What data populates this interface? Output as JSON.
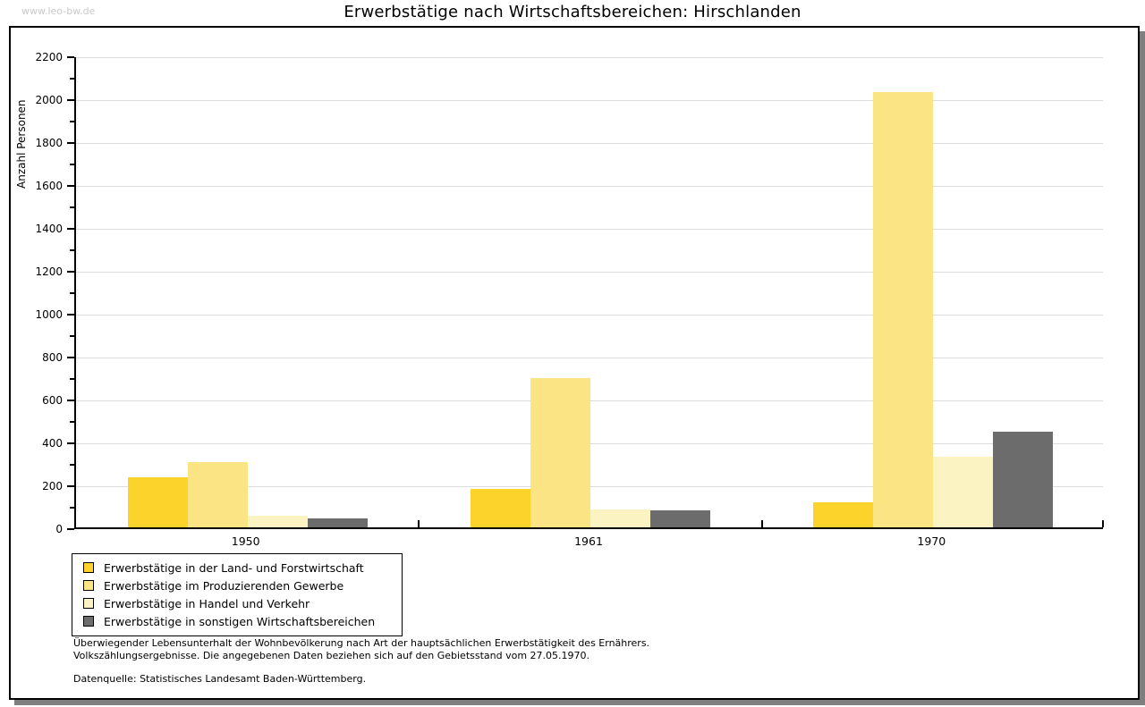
{
  "watermark": "www.leo-bw.de",
  "chart_data": {
    "type": "bar",
    "title": "Erwerbstätige nach Wirtschaftsbereichen: Hirschlanden",
    "xlabel": "",
    "ylabel": "Anzahl Personen",
    "categories": [
      "1950",
      "1961",
      "1970"
    ],
    "series": [
      {
        "name": "Erwerbstätige in der Land- und Forstwirtschaft",
        "color": "#fcd32b",
        "values": [
          235,
          180,
          115
        ]
      },
      {
        "name": "Erwerbstätige im Produzierenden Gewerbe",
        "color": "#fae483",
        "values": [
          305,
          695,
          2030
        ]
      },
      {
        "name": "Erwerbstätige in Handel und Verkehr",
        "color": "#fbf3c2",
        "values": [
          55,
          85,
          330
        ]
      },
      {
        "name": "Erwerbstätige in sonstigen Wirtschaftsbereichen",
        "color": "#6c6c6c",
        "values": [
          40,
          80,
          445
        ]
      }
    ],
    "ylim": [
      0,
      2200
    ],
    "yticks": [
      0,
      200,
      400,
      600,
      800,
      1000,
      1200,
      1400,
      1600,
      1800,
      2000,
      2200
    ],
    "yticks_minor": [
      100,
      300,
      500,
      700,
      900,
      1100,
      1300,
      1500,
      1700,
      1900,
      2100
    ],
    "grid": true,
    "gridline_color": "#dcdcdc",
    "legend_position": "bottom-left"
  },
  "footnotes": {
    "line1": "Überwiegender Lebensunterhalt der Wohnbevölkerung nach Art der hauptsächlichen Erwerbstätigkeit des Ernährers.",
    "line2": "Volkszählungsergebnisse. Die angegebenen Daten beziehen sich auf den Gebietsstand vom 27.05.1970.",
    "source": "Datenquelle: Statistisches Landesamt Baden-Württemberg."
  }
}
